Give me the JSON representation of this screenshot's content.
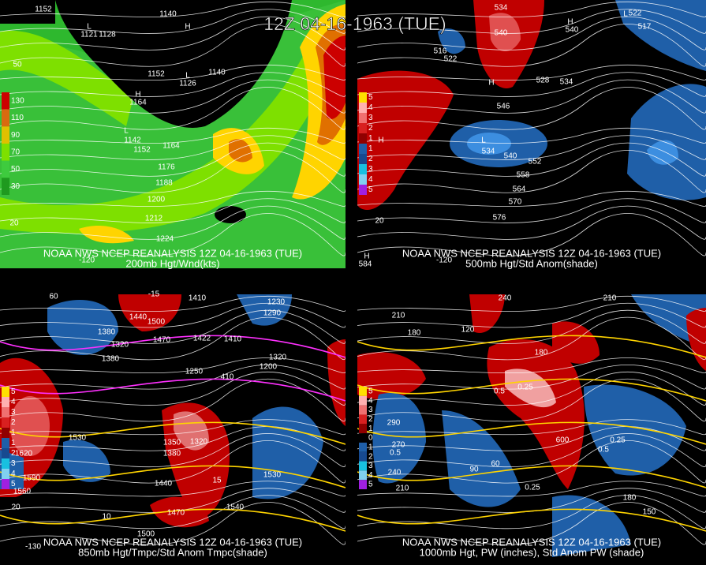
{
  "title": "12Z 04-16-1963 (TUE)",
  "panels": [
    {
      "caption_line1": "NOAA NWS NCEP REANALYSIS 12Z 04-16-1963 (TUE)",
      "caption_line2": "200mb Hgt/Wnd(kts)",
      "colorbar": [
        "130",
        "110",
        "90",
        "70",
        "50",
        "30"
      ],
      "labels": [
        "1152",
        "1140",
        "1121",
        "1128",
        "1152",
        "1126",
        "1140",
        "1164",
        "1142",
        "1152",
        "1164",
        "1176",
        "1188",
        "1200",
        "1212",
        "1224",
        "50",
        "20",
        "-120",
        "L",
        "H",
        "H",
        "L",
        "L"
      ]
    },
    {
      "caption_line1": "NOAA NWS NCEP REANALYSIS 12Z 04-16-1963 (TUE)",
      "caption_line2": "500mb Hgt/Std Anom(shade)",
      "colorbar": [
        "5",
        "4",
        "3",
        "2",
        "1",
        "1",
        "2",
        "3",
        "4",
        "5"
      ],
      "labels": [
        "534",
        "540",
        "522",
        "516",
        "546",
        "552",
        "558",
        "564",
        "570",
        "576",
        "540",
        "534",
        "522",
        "517",
        "540",
        "528",
        "534",
        "20",
        "-120",
        "584",
        "L",
        "H",
        "H",
        "L",
        "H",
        "H"
      ]
    },
    {
      "caption_line1": "NOAA NWS NCEP REANALYSIS 12Z 04-16-1963 (TUE)",
      "caption_line2": "850mb Hgt/Tmpc/Std Anom Tmpc(shade)",
      "colorbar": [
        "5",
        "4",
        "3",
        "2",
        "1",
        "1",
        "2",
        "3",
        "4",
        "5"
      ],
      "labels": [
        "-15",
        "1410",
        "1440",
        "1500",
        "1380",
        "1320",
        "1380",
        "1470",
        "1422",
        "1410",
        "1230",
        "1290",
        "1320",
        "1200",
        "1530",
        "1620",
        "1590",
        "1560",
        "1350",
        "1380",
        "1320",
        "1440",
        "1530",
        "1470",
        "1540",
        "15",
        "10",
        "20",
        "-130",
        "1500",
        "1250",
        "410",
        "60"
      ]
    },
    {
      "caption_line1": "NOAA NWS NCEP REANALYSIS 12Z 04-16-1963 (TUE)",
      "caption_line2": "1000mb Hgt, PW (inches), Std Anom PW (shade)",
      "colorbar": [
        "5",
        "4",
        "3",
        "2",
        "1",
        "0",
        "1",
        "2",
        "3",
        "4",
        "5"
      ],
      "labels": [
        "240",
        "210",
        "210",
        "180",
        "180",
        "120",
        "0.25",
        "0.5",
        "270",
        "0.5",
        "240",
        "210",
        "90",
        "60",
        "0.25",
        "0.5",
        "0.25",
        "180",
        "150",
        "290",
        "600"
      ]
    }
  ]
}
